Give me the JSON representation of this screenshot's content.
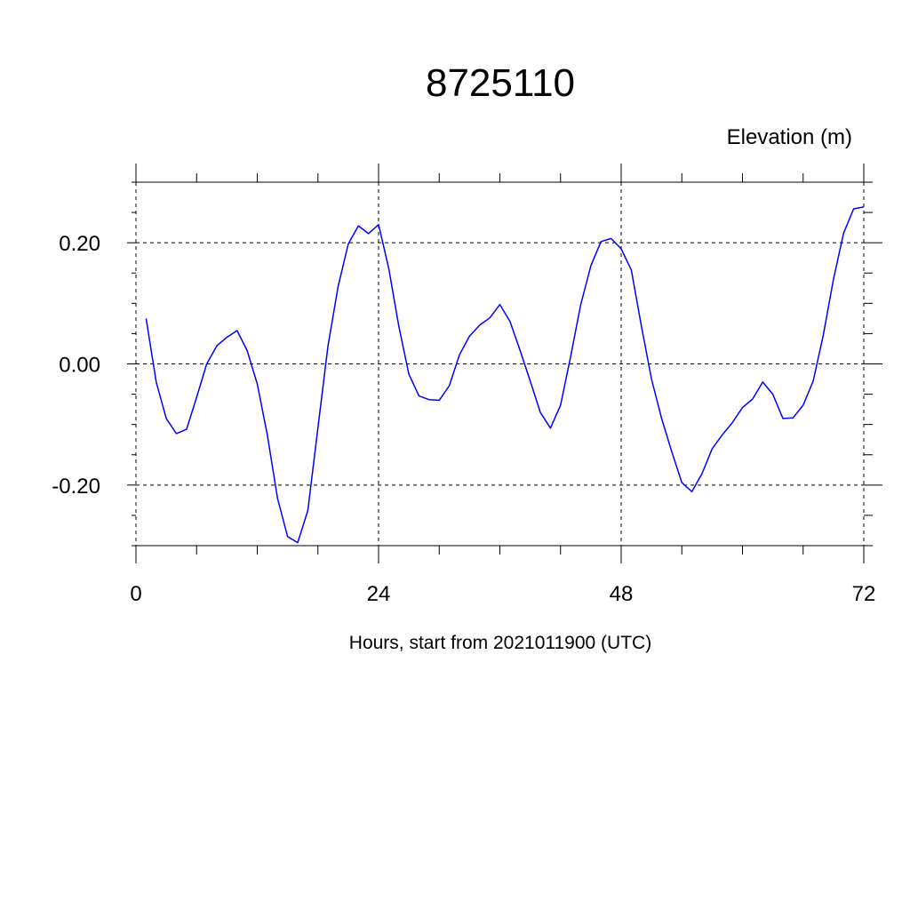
{
  "chart_data": {
    "type": "line",
    "title": "8725110",
    "ylabel": "Elevation (m)",
    "xlabel": "Hours, start from 2021011900 (UTC)",
    "xlim": [
      0,
      72
    ],
    "ylim": [
      -0.3,
      0.3
    ],
    "x_ticks": [
      0,
      24,
      48,
      72
    ],
    "x_tick_labels": [
      "0",
      "24",
      "48",
      "72"
    ],
    "y_ticks": [
      -0.2,
      0.0,
      0.2
    ],
    "y_tick_labels": [
      "-0.20",
      "0.00",
      "0.20"
    ],
    "grid": true,
    "series": [
      {
        "color": "#0000ff",
        "x": [
          1,
          2,
          3,
          4,
          5,
          6,
          7,
          8,
          9,
          10,
          11,
          12,
          13,
          14,
          15,
          16,
          17,
          18,
          19,
          20,
          21,
          22,
          23,
          24,
          25,
          26,
          27,
          28,
          29,
          30,
          31,
          32,
          33,
          34,
          35,
          36,
          37,
          38,
          39,
          40,
          41,
          42,
          43,
          44,
          45,
          46,
          47,
          48,
          49,
          50,
          51,
          52,
          53,
          54,
          55,
          56,
          57,
          58,
          59,
          60,
          61,
          62,
          63,
          64,
          65,
          66,
          67,
          68,
          69,
          70,
          71,
          72
        ],
        "y": [
          0.075,
          -0.03,
          -0.09,
          -0.115,
          -0.108,
          -0.055,
          0.0,
          0.03,
          0.044,
          0.055,
          0.022,
          -0.033,
          -0.118,
          -0.222,
          -0.285,
          -0.295,
          -0.242,
          -0.105,
          0.03,
          0.128,
          0.198,
          0.228,
          0.215,
          0.23,
          0.158,
          0.062,
          -0.017,
          -0.053,
          -0.059,
          -0.06,
          -0.036,
          0.015,
          0.046,
          0.064,
          0.076,
          0.098,
          0.07,
          0.022,
          -0.028,
          -0.08,
          -0.106,
          -0.068,
          0.012,
          0.098,
          0.162,
          0.202,
          0.207,
          0.19,
          0.155,
          0.062,
          -0.025,
          -0.09,
          -0.145,
          -0.196,
          -0.211,
          -0.181,
          -0.14,
          -0.117,
          -0.097,
          -0.072,
          -0.058,
          -0.03,
          -0.05,
          -0.09,
          -0.089,
          -0.068,
          -0.028,
          0.048,
          0.14,
          0.216,
          0.256,
          0.259
        ]
      }
    ]
  }
}
